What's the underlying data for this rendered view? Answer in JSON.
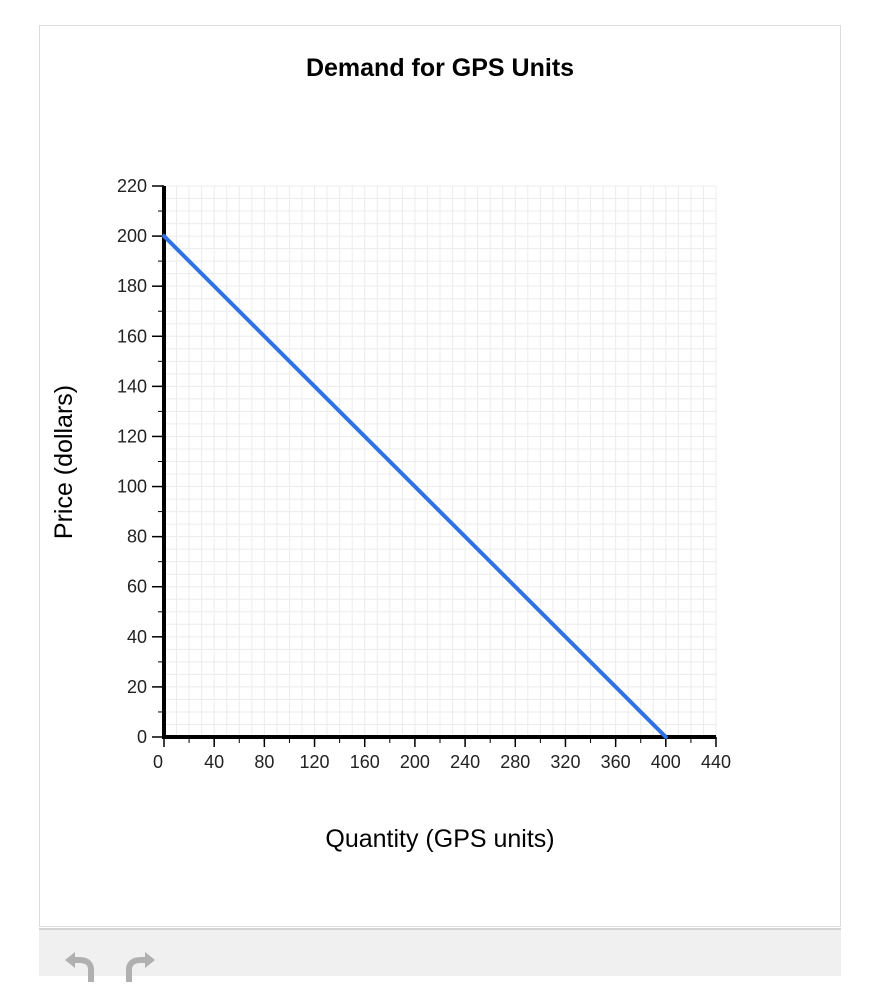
{
  "chart_data": {
    "type": "line",
    "title": "Demand for GPS Units",
    "xlabel": "Quantity (GPS units)",
    "ylabel": "Price (dollars)",
    "xlim": [
      0,
      440
    ],
    "ylim": [
      0,
      220
    ],
    "x_ticks": [
      0,
      40,
      80,
      120,
      160,
      200,
      240,
      280,
      320,
      360,
      400,
      440
    ],
    "y_ticks": [
      0,
      20,
      40,
      60,
      80,
      100,
      120,
      140,
      160,
      180,
      200,
      220
    ],
    "grid": true,
    "series": [
      {
        "color": "#2f72e6",
        "x": [
          0,
          400
        ],
        "y": [
          200,
          0
        ]
      }
    ]
  },
  "toolbar": {
    "undo_icon": "undo-icon",
    "redo_icon": "redo-icon"
  }
}
